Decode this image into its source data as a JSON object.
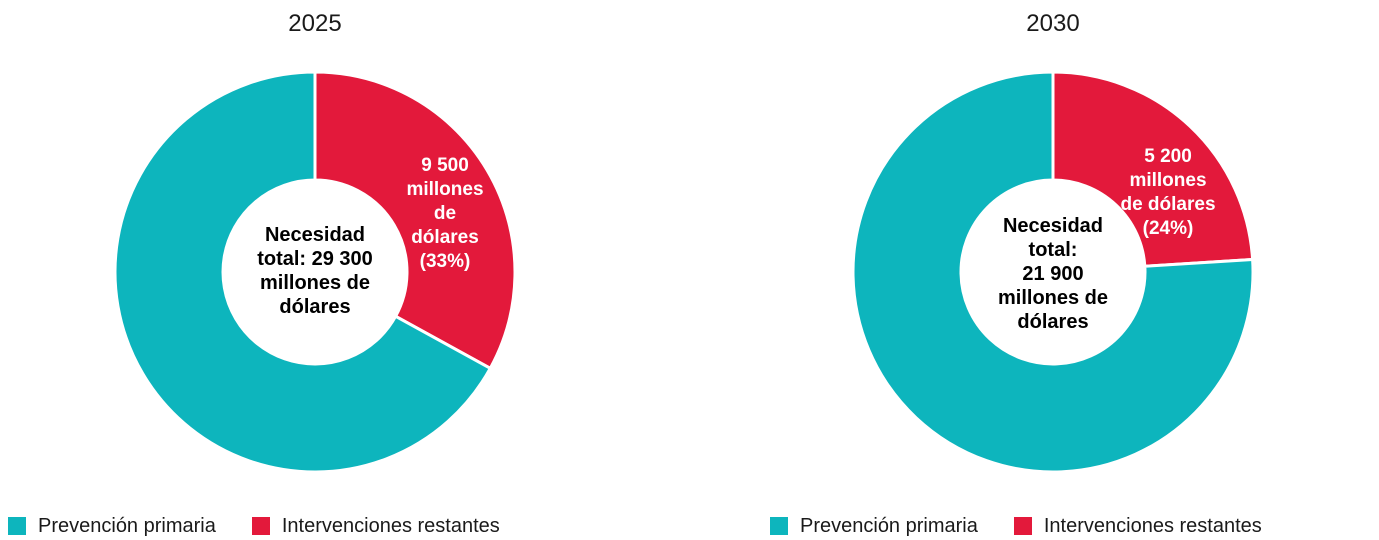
{
  "colors": {
    "primary_prevention": "#0db5bd",
    "remaining_interventions": "#e3193b"
  },
  "legend": {
    "item1": "Prevención primaria",
    "item2": "Intervenciones restantes"
  },
  "chart_data": [
    {
      "type": "pie",
      "title": "2025",
      "categories": [
        "Prevención primaria",
        "Intervenciones restantes"
      ],
      "values": [
        67,
        33
      ],
      "center_lines": [
        "Necesidad",
        "total: 29 300",
        "millones de",
        "dólares"
      ],
      "slice_label_lines": [
        "9 500",
        "millones",
        "de",
        "dólares",
        "(33%)"
      ]
    },
    {
      "type": "pie",
      "title": "2030",
      "categories": [
        "Prevención primaria",
        "Intervenciones restantes"
      ],
      "values": [
        76,
        24
      ],
      "center_lines": [
        "Necesidad",
        "total:",
        "21 900",
        "millones de",
        "dólares"
      ],
      "slice_label_lines": [
        "5 200",
        "millones",
        "de dólares",
        "(24%)"
      ]
    }
  ]
}
